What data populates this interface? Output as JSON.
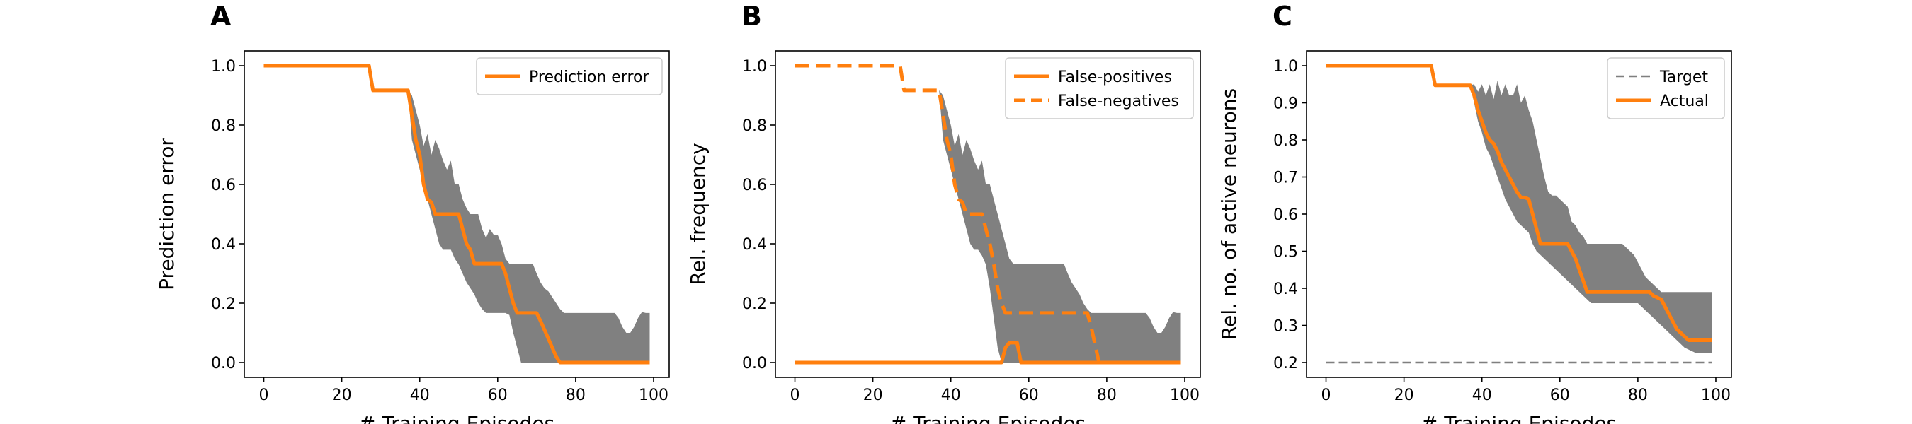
{
  "colors": {
    "orange": "#ff7f0e",
    "band": "#808080",
    "target": "#7f7f7f",
    "axis": "#000000"
  },
  "chart_data": [
    {
      "panel": "A",
      "type": "line",
      "title": "",
      "xlabel": "# Training Episodes",
      "ylabel": "Prediction error",
      "xlim": [
        -5,
        104
      ],
      "ylim": [
        -0.05,
        1.05
      ],
      "xticks": [
        0,
        20,
        40,
        60,
        80,
        100
      ],
      "yticks": [
        0.0,
        0.2,
        0.4,
        0.6,
        0.8,
        1.0
      ],
      "ytick_labels": [
        "0.0",
        "0.2",
        "0.4",
        "0.6",
        "0.8",
        "1.0"
      ],
      "legend": {
        "position": "top-right",
        "entries": [
          {
            "label": "Prediction error",
            "style": "solid"
          }
        ]
      },
      "series": [
        {
          "name": "Prediction error",
          "style": "solid",
          "x": [
            0,
            27,
            28,
            37,
            38,
            39,
            40,
            41,
            42,
            43,
            44,
            45,
            46,
            47,
            48,
            49,
            50,
            51,
            52,
            53,
            54,
            55,
            56,
            57,
            58,
            59,
            60,
            61,
            62,
            63,
            64,
            65,
            66,
            67,
            68,
            69,
            70,
            71,
            72,
            73,
            74,
            75,
            76,
            77,
            78,
            79,
            80,
            81,
            82,
            83,
            99
          ],
          "y": [
            1.0,
            1.0,
            0.917,
            0.917,
            0.833,
            0.75,
            0.7,
            0.6,
            0.55,
            0.54,
            0.5,
            0.5,
            0.5,
            0.5,
            0.5,
            0.5,
            0.5,
            0.45,
            0.4,
            0.38,
            0.333,
            0.333,
            0.333,
            0.333,
            0.333,
            0.333,
            0.333,
            0.333,
            0.3,
            0.25,
            0.2,
            0.167,
            0.167,
            0.167,
            0.167,
            0.167,
            0.167,
            0.14,
            0.11,
            0.08,
            0.05,
            0.02,
            0.0,
            0.0,
            0.0,
            0.0,
            0.0,
            0.0,
            0.0,
            0.0,
            0.0
          ]
        }
      ],
      "band": {
        "x": [
          37,
          38,
          39,
          40,
          41,
          42,
          43,
          44,
          45,
          46,
          47,
          48,
          49,
          50,
          51,
          52,
          53,
          54,
          55,
          56,
          57,
          58,
          59,
          60,
          61,
          62,
          63,
          64,
          65,
          66,
          67,
          68,
          69,
          70,
          71,
          72,
          73,
          74,
          75,
          76,
          77,
          78,
          79,
          80,
          81,
          82,
          83,
          84,
          85,
          86,
          87,
          88,
          89,
          90,
          91,
          92,
          93,
          94,
          95,
          96,
          97,
          98,
          99
        ],
        "upper": [
          0.917,
          0.9,
          0.85,
          0.8,
          0.73,
          0.77,
          0.7,
          0.75,
          0.72,
          0.68,
          0.65,
          0.68,
          0.6,
          0.6,
          0.55,
          0.52,
          0.5,
          0.5,
          0.5,
          0.45,
          0.42,
          0.45,
          0.43,
          0.43,
          0.4,
          0.35,
          0.333,
          0.333,
          0.333,
          0.333,
          0.333,
          0.333,
          0.333,
          0.3,
          0.27,
          0.25,
          0.24,
          0.22,
          0.2,
          0.18,
          0.167,
          0.167,
          0.167,
          0.167,
          0.167,
          0.167,
          0.167,
          0.167,
          0.167,
          0.167,
          0.167,
          0.167,
          0.167,
          0.167,
          0.15,
          0.12,
          0.1,
          0.1,
          0.12,
          0.15,
          0.17,
          0.167,
          0.167
        ],
        "lower": [
          0.917,
          0.75,
          0.7,
          0.65,
          0.6,
          0.55,
          0.5,
          0.45,
          0.4,
          0.38,
          0.38,
          0.38,
          0.35,
          0.33,
          0.3,
          0.27,
          0.25,
          0.23,
          0.2,
          0.18,
          0.167,
          0.167,
          0.167,
          0.167,
          0.167,
          0.167,
          0.16,
          0.1,
          0.05,
          0.0,
          0.0,
          0.0,
          0.0,
          0.0,
          0.0,
          0.0,
          0.0,
          0.0,
          0.0,
          0.0,
          0.0,
          0.0,
          0.0,
          0.0,
          0.0,
          0.0,
          0.0,
          0.0,
          0.0,
          0.0,
          0.0,
          0.0,
          0.0,
          0.0,
          0.0,
          0.0,
          0.0,
          0.0,
          0.0,
          0.0,
          0.0,
          0.0,
          0.0
        ]
      }
    },
    {
      "panel": "B",
      "type": "line",
      "title": "",
      "xlabel": "# Training Episodes",
      "ylabel": "Rel. frequency",
      "xlim": [
        -5,
        104
      ],
      "ylim": [
        -0.05,
        1.05
      ],
      "xticks": [
        0,
        20,
        40,
        60,
        80,
        100
      ],
      "yticks": [
        0.0,
        0.2,
        0.4,
        0.6,
        0.8,
        1.0
      ],
      "ytick_labels": [
        "0.0",
        "0.2",
        "0.4",
        "0.6",
        "0.8",
        "1.0"
      ],
      "legend": {
        "position": "top-right",
        "entries": [
          {
            "label": "False-positives",
            "style": "solid"
          },
          {
            "label": "False-negatives",
            "style": "dashed"
          }
        ]
      },
      "series": [
        {
          "name": "False-positives",
          "style": "solid",
          "x": [
            0,
            53,
            54,
            55,
            56,
            57,
            58,
            59,
            99
          ],
          "y": [
            0.0,
            0.0,
            0.05,
            0.067,
            0.067,
            0.067,
            0.0,
            0.0,
            0.0
          ]
        },
        {
          "name": "False-negatives",
          "style": "dashed",
          "x": [
            0,
            27,
            28,
            37,
            38,
            39,
            40,
            41,
            42,
            43,
            44,
            45,
            46,
            47,
            48,
            49,
            50,
            51,
            52,
            53,
            54,
            55,
            56,
            57,
            58,
            59,
            60,
            61,
            62,
            63,
            64,
            65,
            66,
            67,
            68,
            69,
            70,
            71,
            72,
            73,
            74,
            75,
            76,
            77,
            78,
            79,
            80,
            99
          ],
          "y": [
            1.0,
            1.0,
            0.917,
            0.917,
            0.833,
            0.75,
            0.7,
            0.6,
            0.55,
            0.54,
            0.5,
            0.5,
            0.5,
            0.5,
            0.5,
            0.45,
            0.4,
            0.333,
            0.25,
            0.2,
            0.167,
            0.167,
            0.167,
            0.167,
            0.167,
            0.167,
            0.167,
            0.167,
            0.167,
            0.167,
            0.167,
            0.167,
            0.167,
            0.167,
            0.167,
            0.167,
            0.167,
            0.167,
            0.167,
            0.167,
            0.167,
            0.167,
            0.12,
            0.06,
            0.0,
            0.0,
            0.0,
            0.0
          ]
        }
      ],
      "band": {
        "x": [
          37,
          38,
          39,
          40,
          41,
          42,
          43,
          44,
          45,
          46,
          47,
          48,
          49,
          50,
          51,
          52,
          53,
          54,
          55,
          56,
          57,
          58,
          59,
          60,
          61,
          62,
          63,
          64,
          65,
          66,
          67,
          68,
          69,
          70,
          71,
          72,
          73,
          74,
          75,
          76,
          77,
          78,
          79,
          80,
          81,
          82,
          83,
          84,
          85,
          86,
          87,
          88,
          89,
          90,
          91,
          92,
          93,
          94,
          95,
          96,
          97,
          98,
          99
        ],
        "upper": [
          0.917,
          0.9,
          0.85,
          0.8,
          0.73,
          0.77,
          0.7,
          0.75,
          0.72,
          0.68,
          0.65,
          0.68,
          0.6,
          0.6,
          0.55,
          0.5,
          0.45,
          0.4,
          0.35,
          0.333,
          0.333,
          0.333,
          0.333,
          0.333,
          0.333,
          0.333,
          0.333,
          0.333,
          0.333,
          0.333,
          0.333,
          0.333,
          0.333,
          0.3,
          0.27,
          0.25,
          0.23,
          0.2,
          0.18,
          0.167,
          0.167,
          0.167,
          0.167,
          0.167,
          0.167,
          0.167,
          0.167,
          0.167,
          0.167,
          0.167,
          0.167,
          0.167,
          0.167,
          0.167,
          0.15,
          0.12,
          0.1,
          0.1,
          0.12,
          0.15,
          0.17,
          0.167,
          0.167
        ],
        "lower": [
          0.917,
          0.75,
          0.7,
          0.65,
          0.6,
          0.55,
          0.5,
          0.45,
          0.4,
          0.38,
          0.38,
          0.36,
          0.33,
          0.25,
          0.15,
          0.05,
          0.0,
          0.0,
          0.0,
          0.0,
          0.0,
          0.0,
          0.0,
          0.0,
          0.0,
          0.0,
          0.0,
          0.0,
          0.0,
          0.0,
          0.0,
          0.0,
          0.0,
          0.0,
          0.0,
          0.0,
          0.0,
          0.0,
          0.0,
          0.0,
          0.0,
          0.0,
          0.0,
          0.0,
          0.0,
          0.0,
          0.0,
          0.0,
          0.0,
          0.0,
          0.0,
          0.0,
          0.0,
          0.0,
          0.0,
          0.0,
          0.0,
          0.0,
          0.0,
          0.0,
          0.0,
          0.0,
          0.0
        ]
      }
    },
    {
      "panel": "C",
      "type": "line",
      "title": "",
      "xlabel": "# Training Episodes",
      "ylabel": "Rel. no. of active neurons",
      "xlim": [
        -5,
        104
      ],
      "ylim": [
        0.16,
        1.04
      ],
      "xticks": [
        0,
        20,
        40,
        60,
        80,
        100
      ],
      "yticks": [
        0.2,
        0.3,
        0.4,
        0.5,
        0.6,
        0.7,
        0.8,
        0.9,
        1.0
      ],
      "ytick_labels": [
        "0.2",
        "0.3",
        "0.4",
        "0.5",
        "0.6",
        "0.7",
        "0.8",
        "0.9",
        "1.0"
      ],
      "legend": {
        "position": "top-right",
        "entries": [
          {
            "label": "Target",
            "style": "thin-dashed"
          },
          {
            "label": "Actual",
            "style": "solid"
          }
        ]
      },
      "series": [
        {
          "name": "Target",
          "style": "thin-dashed",
          "x": [
            0,
            99
          ],
          "y": [
            0.2,
            0.2
          ]
        },
        {
          "name": "Actual",
          "style": "solid",
          "x": [
            0,
            27,
            28,
            37,
            38,
            39,
            40,
            41,
            42,
            43,
            44,
            45,
            46,
            47,
            48,
            49,
            50,
            51,
            52,
            53,
            54,
            55,
            56,
            57,
            58,
            59,
            60,
            61,
            62,
            63,
            64,
            65,
            66,
            67,
            68,
            69,
            70,
            71,
            72,
            73,
            74,
            75,
            76,
            77,
            78,
            79,
            80,
            81,
            82,
            83,
            84,
            85,
            86,
            87,
            88,
            89,
            90,
            91,
            92,
            93,
            94,
            95,
            96,
            97,
            98,
            99
          ],
          "y": [
            1.0,
            1.0,
            0.947,
            0.947,
            0.92,
            0.88,
            0.85,
            0.82,
            0.8,
            0.79,
            0.77,
            0.74,
            0.72,
            0.7,
            0.68,
            0.66,
            0.645,
            0.645,
            0.64,
            0.6,
            0.56,
            0.52,
            0.52,
            0.52,
            0.52,
            0.52,
            0.52,
            0.52,
            0.52,
            0.5,
            0.48,
            0.45,
            0.42,
            0.39,
            0.39,
            0.39,
            0.39,
            0.39,
            0.39,
            0.39,
            0.39,
            0.39,
            0.39,
            0.39,
            0.39,
            0.39,
            0.39,
            0.39,
            0.39,
            0.39,
            0.38,
            0.375,
            0.37,
            0.35,
            0.33,
            0.31,
            0.29,
            0.28,
            0.27,
            0.26,
            0.26,
            0.26,
            0.26,
            0.26,
            0.26,
            0.26
          ]
        }
      ],
      "band": {
        "x": [
          37,
          38,
          39,
          40,
          41,
          42,
          43,
          44,
          45,
          46,
          47,
          48,
          49,
          50,
          51,
          52,
          53,
          54,
          55,
          56,
          57,
          58,
          59,
          60,
          61,
          62,
          63,
          64,
          65,
          66,
          67,
          68,
          69,
          70,
          71,
          72,
          73,
          74,
          75,
          76,
          77,
          78,
          79,
          80,
          81,
          82,
          83,
          84,
          85,
          86,
          87,
          88,
          89,
          90,
          91,
          92,
          93,
          94,
          95,
          96,
          97,
          98,
          99
        ],
        "upper": [
          0.947,
          0.95,
          0.93,
          0.95,
          0.92,
          0.95,
          0.91,
          0.96,
          0.92,
          0.95,
          0.92,
          0.92,
          0.95,
          0.9,
          0.92,
          0.88,
          0.85,
          0.8,
          0.75,
          0.7,
          0.66,
          0.65,
          0.65,
          0.64,
          0.63,
          0.62,
          0.58,
          0.57,
          0.55,
          0.54,
          0.52,
          0.52,
          0.52,
          0.52,
          0.52,
          0.52,
          0.52,
          0.52,
          0.52,
          0.52,
          0.51,
          0.5,
          0.49,
          0.47,
          0.45,
          0.43,
          0.42,
          0.41,
          0.4,
          0.39,
          0.39,
          0.39,
          0.39,
          0.39,
          0.39,
          0.39,
          0.39,
          0.39,
          0.39,
          0.39,
          0.39,
          0.39,
          0.39
        ],
        "lower": [
          0.947,
          0.9,
          0.85,
          0.82,
          0.78,
          0.76,
          0.73,
          0.7,
          0.67,
          0.64,
          0.62,
          0.6,
          0.58,
          0.57,
          0.56,
          0.55,
          0.52,
          0.5,
          0.49,
          0.48,
          0.47,
          0.46,
          0.45,
          0.44,
          0.43,
          0.42,
          0.41,
          0.4,
          0.39,
          0.38,
          0.37,
          0.36,
          0.36,
          0.36,
          0.36,
          0.36,
          0.36,
          0.36,
          0.36,
          0.36,
          0.36,
          0.36,
          0.36,
          0.36,
          0.35,
          0.34,
          0.33,
          0.32,
          0.31,
          0.3,
          0.29,
          0.28,
          0.27,
          0.26,
          0.25,
          0.24,
          0.235,
          0.23,
          0.225,
          0.225,
          0.225,
          0.225,
          0.225
        ]
      }
    }
  ]
}
